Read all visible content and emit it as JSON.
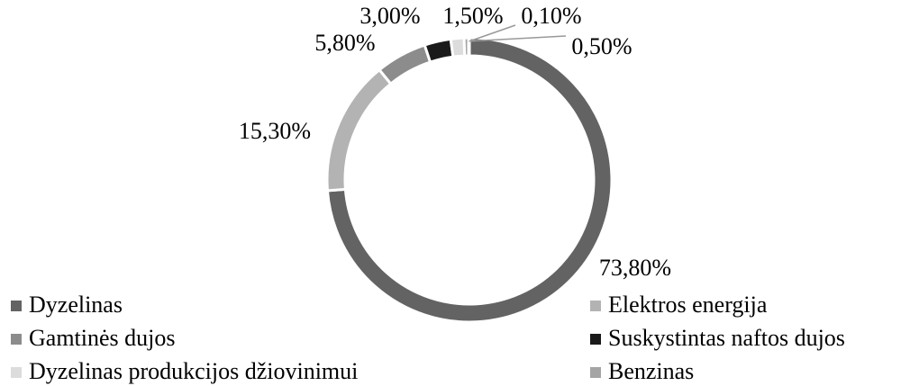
{
  "chart_data": {
    "type": "donut",
    "categories": [
      "Dyzelinas",
      "Elektros energija",
      "Gamtinės dujos",
      "Suskystintas naftos dujos",
      "Dyzelinas produkcijos džiovinimui",
      "Benzinas",
      null
    ],
    "values": [
      73.8,
      15.3,
      5.8,
      3.0,
      1.5,
      0.5,
      0.1
    ],
    "value_labels": [
      "73,80%",
      "15,30%",
      "5,80%",
      "3,00%",
      "1,50%",
      "0,50%",
      "0,10%"
    ],
    "colors": [
      "#636363",
      "#b3b3b3",
      "#8c8c8c",
      "#1a1a1a",
      "#dcdcdc",
      "#a5a5a5",
      "#7a7a7a"
    ],
    "legend": "bottom"
  }
}
